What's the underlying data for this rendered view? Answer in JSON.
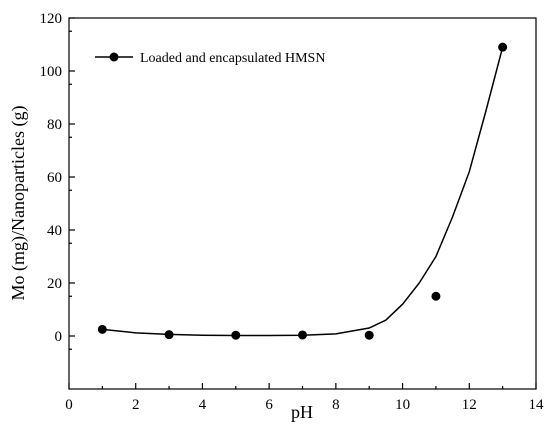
{
  "chart_data": {
    "type": "scatter",
    "x_label": "pH",
    "y_label": "Mo (mg)/Nanoparticles (g)",
    "series": [
      {
        "name": "Loaded and encapsulated HMSN",
        "color": "#000000",
        "x": [
          1,
          3,
          5,
          7,
          9,
          11,
          13
        ],
        "values": [
          2.5,
          0.5,
          0.3,
          0.4,
          0.3,
          15,
          109
        ]
      }
    ],
    "fit": {
      "x": [
        1,
        2,
        3,
        4,
        5,
        6,
        7,
        8,
        9,
        9.5,
        10,
        10.5,
        11,
        11.5,
        12,
        12.5,
        13
      ],
      "values": [
        2.5,
        1.2,
        0.6,
        0.3,
        0.2,
        0.2,
        0.3,
        0.8,
        3,
        6,
        12,
        20,
        30,
        45,
        62,
        85,
        109
      ]
    },
    "xlim": [
      0,
      14
    ],
    "xticks": [
      0,
      2,
      4,
      6,
      8,
      10,
      12,
      14
    ],
    "ylim": [
      -20,
      120
    ],
    "yticks": [
      0,
      20,
      40,
      60,
      80,
      100,
      120
    ],
    "legend": "upper-left"
  }
}
